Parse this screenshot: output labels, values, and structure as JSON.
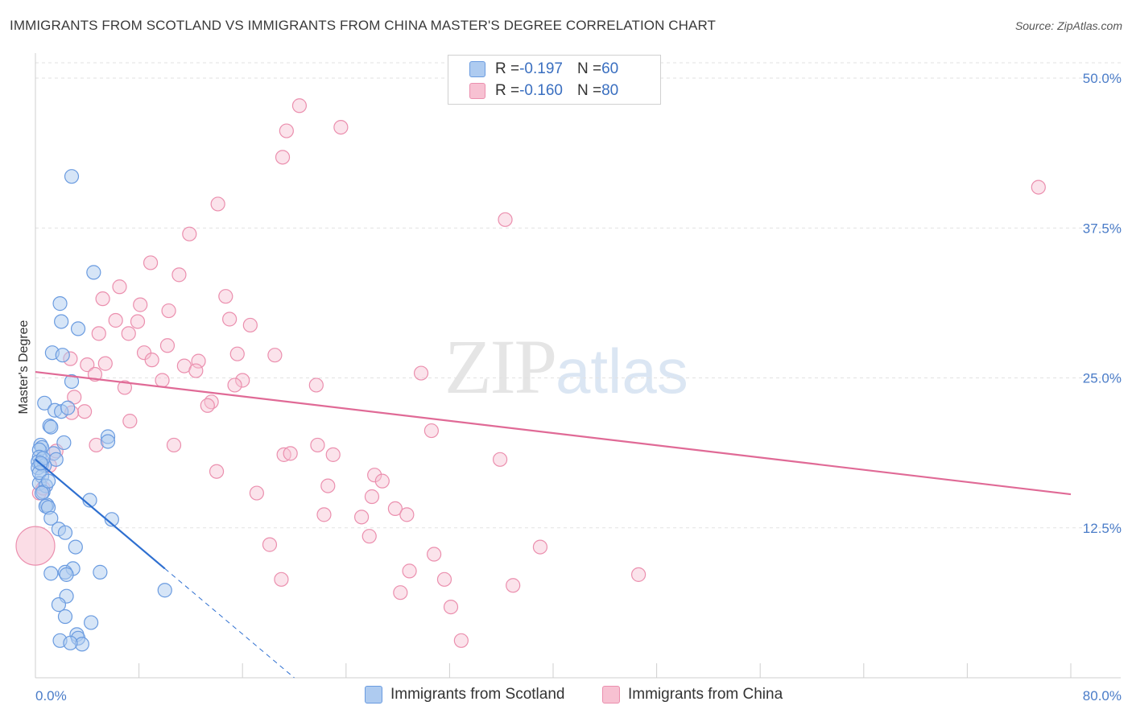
{
  "title": "IMMIGRANTS FROM SCOTLAND VS IMMIGRANTS FROM CHINA MASTER'S DEGREE CORRELATION CHART",
  "source": "Source: ZipAtlas.com",
  "watermark": {
    "zip": "ZIP",
    "atlas": "atlas"
  },
  "legend": {
    "r_prefix": "R = ",
    "n_prefix": "N = ",
    "scotland": {
      "r": "-0.197",
      "n": "60"
    },
    "china": {
      "r": "-0.160",
      "n": "80"
    }
  },
  "colors": {
    "scotland_fill": "#aecbf0",
    "scotland_stroke": "#6a9be0",
    "scotland_line": "#2e6fd0",
    "china_fill": "#f7c1d2",
    "china_stroke": "#eb8fae",
    "china_line": "#e06a96",
    "tick_color": "#4a7cc8"
  },
  "chart_data": {
    "type": "scatter",
    "title": "IMMIGRANTS FROM SCOTLAND VS IMMIGRANTS FROM CHINA MASTER'S DEGREE CORRELATION CHART",
    "xlabel": "",
    "ylabel": "Master's Degree",
    "xlim": [
      0,
      80
    ],
    "ylim": [
      0,
      51.5
    ],
    "x_tick_labels": [
      "0.0%",
      "80.0%"
    ],
    "y_ticks": [
      12.5,
      25.0,
      37.5,
      50.0
    ],
    "y_tick_labels": [
      "12.5%",
      "25.0%",
      "37.5%",
      "50.0%"
    ],
    "grid": true,
    "legend_position": "top-center",
    "series": [
      {
        "name": "Immigrants from Scotland",
        "trend": {
          "x": [
            0,
            10.0
          ],
          "y": [
            18.2,
            9.1
          ],
          "dashed_to": [
            20.0,
            0
          ]
        },
        "points": [
          [
            2.8,
            41.8
          ],
          [
            4.5,
            33.8
          ],
          [
            1.9,
            31.2
          ],
          [
            2.0,
            29.7
          ],
          [
            3.3,
            29.1
          ],
          [
            1.3,
            27.1
          ],
          [
            2.1,
            26.9
          ],
          [
            2.8,
            24.7
          ],
          [
            0.7,
            22.9
          ],
          [
            1.5,
            22.3
          ],
          [
            2.0,
            22.2
          ],
          [
            1.1,
            21.0
          ],
          [
            1.2,
            20.9
          ],
          [
            5.6,
            20.1
          ],
          [
            5.6,
            19.7
          ],
          [
            2.2,
            19.6
          ],
          [
            0.4,
            19.4
          ],
          [
            0.5,
            19.2
          ],
          [
            0.3,
            19.0
          ],
          [
            1.4,
            18.7
          ],
          [
            0.3,
            18.4
          ],
          [
            1.6,
            18.2
          ],
          [
            0.2,
            18.0
          ],
          [
            0.5,
            17.8
          ],
          [
            0.7,
            17.7
          ],
          [
            0.2,
            17.5
          ],
          [
            0.5,
            16.8
          ],
          [
            0.3,
            16.2
          ],
          [
            0.8,
            16.0
          ],
          [
            0.6,
            15.5
          ],
          [
            0.5,
            15.4
          ],
          [
            4.2,
            14.8
          ],
          [
            0.9,
            14.4
          ],
          [
            0.8,
            14.3
          ],
          [
            1.0,
            14.2
          ],
          [
            1.2,
            13.3
          ],
          [
            5.9,
            13.2
          ],
          [
            1.8,
            12.4
          ],
          [
            2.3,
            12.1
          ],
          [
            3.1,
            10.9
          ],
          [
            2.9,
            9.1
          ],
          [
            2.3,
            8.8
          ],
          [
            5.0,
            8.8
          ],
          [
            1.2,
            8.7
          ],
          [
            2.4,
            8.6
          ],
          [
            10.0,
            7.3
          ],
          [
            2.4,
            6.8
          ],
          [
            1.8,
            6.1
          ],
          [
            2.3,
            5.1
          ],
          [
            4.3,
            4.6
          ],
          [
            3.2,
            3.6
          ],
          [
            1.9,
            3.1
          ],
          [
            3.3,
            3.3
          ],
          [
            3.6,
            2.8
          ],
          [
            2.7,
            2.9
          ],
          [
            0.3,
            17.1
          ],
          [
            0.6,
            18.3
          ],
          [
            1.0,
            16.4
          ],
          [
            0.4,
            17.9
          ],
          [
            2.5,
            22.5
          ]
        ]
      },
      {
        "name": "Immigrants from China",
        "trend": {
          "x": [
            0,
            80
          ],
          "y": [
            25.5,
            15.3
          ]
        },
        "points": [
          [
            20.4,
            47.7
          ],
          [
            19.4,
            45.6
          ],
          [
            23.6,
            45.9
          ],
          [
            19.1,
            43.4
          ],
          [
            14.1,
            39.5
          ],
          [
            36.3,
            38.2
          ],
          [
            77.5,
            40.9
          ],
          [
            11.9,
            37.0
          ],
          [
            8.9,
            34.6
          ],
          [
            11.1,
            33.6
          ],
          [
            6.5,
            32.6
          ],
          [
            14.7,
            31.8
          ],
          [
            5.2,
            31.6
          ],
          [
            8.1,
            31.1
          ],
          [
            10.3,
            30.6
          ],
          [
            15.0,
            29.9
          ],
          [
            6.2,
            29.8
          ],
          [
            7.9,
            29.7
          ],
          [
            16.6,
            29.4
          ],
          [
            4.9,
            28.7
          ],
          [
            7.2,
            28.7
          ],
          [
            10.2,
            27.7
          ],
          [
            8.4,
            27.1
          ],
          [
            15.6,
            27.0
          ],
          [
            18.5,
            26.9
          ],
          [
            2.7,
            26.6
          ],
          [
            9.0,
            26.5
          ],
          [
            12.6,
            26.4
          ],
          [
            5.4,
            26.2
          ],
          [
            4.0,
            26.1
          ],
          [
            11.5,
            26.0
          ],
          [
            12.4,
            25.6
          ],
          [
            4.6,
            25.3
          ],
          [
            29.8,
            25.4
          ],
          [
            9.8,
            24.8
          ],
          [
            16.0,
            24.8
          ],
          [
            15.4,
            24.4
          ],
          [
            21.7,
            24.4
          ],
          [
            6.9,
            24.2
          ],
          [
            3.0,
            23.4
          ],
          [
            13.6,
            23.0
          ],
          [
            13.3,
            22.7
          ],
          [
            3.8,
            22.2
          ],
          [
            2.8,
            22.1
          ],
          [
            7.3,
            21.4
          ],
          [
            30.6,
            20.6
          ],
          [
            4.7,
            19.4
          ],
          [
            10.7,
            19.4
          ],
          [
            21.8,
            19.4
          ],
          [
            1.6,
            18.9
          ],
          [
            19.2,
            18.6
          ],
          [
            19.7,
            18.7
          ],
          [
            23.0,
            18.6
          ],
          [
            35.9,
            18.2
          ],
          [
            1.1,
            17.7
          ],
          [
            14.0,
            17.2
          ],
          [
            26.2,
            16.9
          ],
          [
            26.8,
            16.4
          ],
          [
            22.6,
            16.0
          ],
          [
            17.1,
            15.4
          ],
          [
            26.0,
            15.1
          ],
          [
            0.3,
            15.4
          ],
          [
            27.8,
            14.1
          ],
          [
            22.3,
            13.6
          ],
          [
            25.2,
            13.4
          ],
          [
            28.7,
            13.6
          ],
          [
            25.8,
            11.8
          ],
          [
            18.1,
            11.1
          ],
          [
            39.0,
            10.9
          ],
          [
            30.8,
            10.3
          ],
          [
            28.9,
            8.9
          ],
          [
            19.0,
            8.2
          ],
          [
            31.6,
            8.2
          ],
          [
            46.6,
            8.6
          ],
          [
            36.9,
            7.7
          ],
          [
            28.2,
            7.1
          ],
          [
            32.1,
            5.9
          ],
          [
            32.9,
            3.1
          ],
          [
            0.0,
            11.0
          ],
          [
            0.6,
            15.8
          ]
        ]
      }
    ]
  },
  "bottom_legend": {
    "scotland": "Immigrants from Scotland",
    "china": "Immigrants from China"
  }
}
